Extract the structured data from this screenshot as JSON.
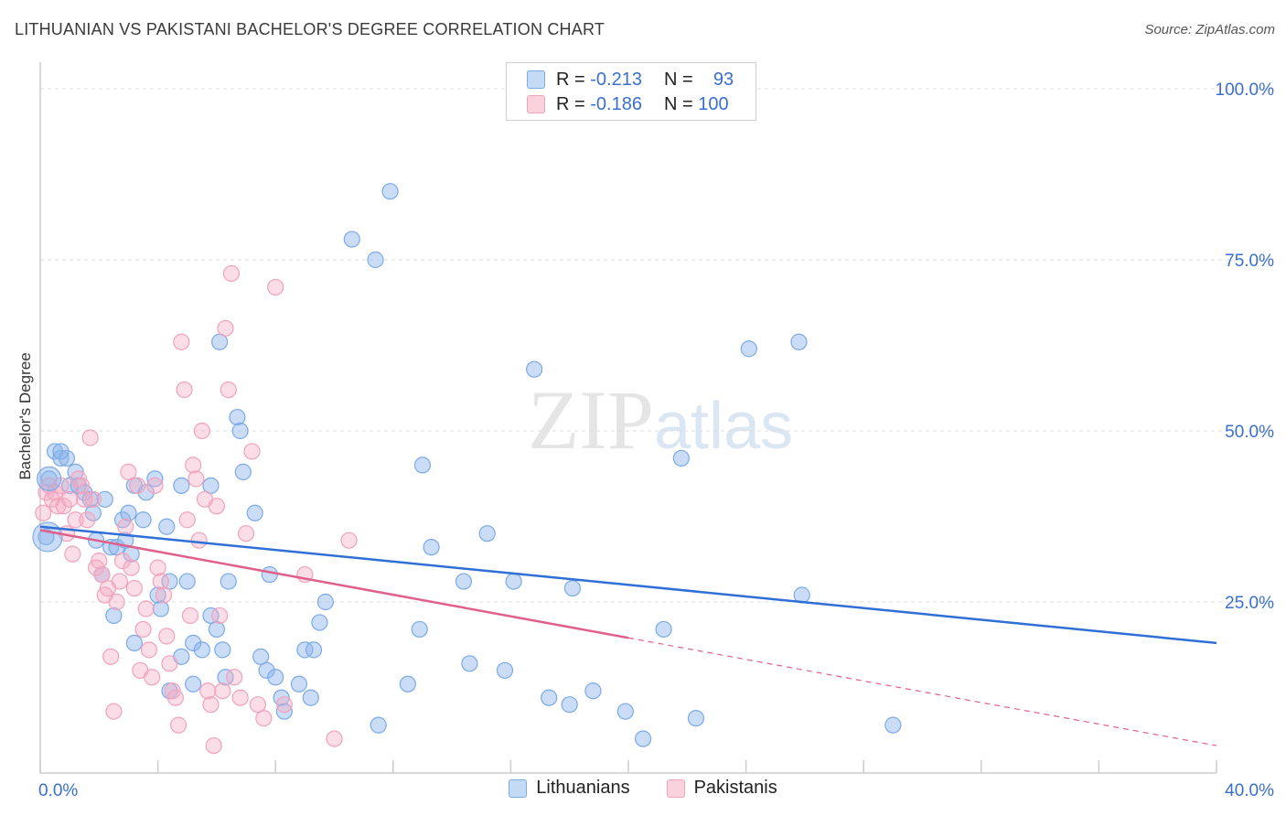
{
  "header": {
    "title": "LITHUANIAN VS PAKISTANI BACHELOR'S DEGREE CORRELATION CHART",
    "source": "Source: ZipAtlas.com"
  },
  "legend": {
    "rows": [
      {
        "r_label": "R = ",
        "r_value": "-0.213",
        "n_label": "N = ",
        "n_value": "93",
        "color": "#7aaae8"
      },
      {
        "r_label": "R = ",
        "r_value": "-0.186",
        "n_label": "N = ",
        "n_value": "100",
        "color": "#f2a2bb"
      }
    ],
    "bottom": [
      "Lithuanians",
      "Pakistanis"
    ]
  },
  "chart_data": {
    "type": "scatter",
    "ylabel": "Bachelor's Degree",
    "xlabel": "",
    "x_tick_labels": {
      "min": "0.0%",
      "max": "40.0%"
    },
    "y_tick_labels": [
      "25.0%",
      "50.0%",
      "75.0%",
      "100.0%"
    ],
    "xlim": [
      0,
      40
    ],
    "ylim": [
      0,
      100
    ],
    "grid": true,
    "watermark": "ZIPatlas",
    "series": [
      {
        "name": "Lithuanians",
        "color": "#7aaae8",
        "line_color": "#2f6fd6",
        "trend": {
          "x0": 0,
          "y0": 36.0,
          "x1": 40,
          "y1": 19.0,
          "solid_until": 40
        },
        "points": [
          [
            0.2,
            34.5
          ],
          [
            0.3,
            43
          ],
          [
            0.5,
            47
          ],
          [
            0.7,
            46
          ],
          [
            0.9,
            46
          ],
          [
            0.7,
            47
          ],
          [
            1.0,
            42
          ],
          [
            1.2,
            44
          ],
          [
            1.3,
            42
          ],
          [
            1.5,
            41
          ],
          [
            1.7,
            40
          ],
          [
            1.8,
            38
          ],
          [
            1.9,
            34
          ],
          [
            2.1,
            29
          ],
          [
            2.2,
            40
          ],
          [
            2.4,
            33
          ],
          [
            2.5,
            23
          ],
          [
            2.6,
            33
          ],
          [
            2.8,
            37
          ],
          [
            2.9,
            34
          ],
          [
            3.0,
            38
          ],
          [
            3.1,
            32
          ],
          [
            3.2,
            42
          ],
          [
            3.2,
            19
          ],
          [
            3.5,
            37
          ],
          [
            3.6,
            41
          ],
          [
            3.9,
            43
          ],
          [
            4.0,
            26
          ],
          [
            4.1,
            24
          ],
          [
            4.3,
            36
          ],
          [
            4.4,
            28
          ],
          [
            4.4,
            12
          ],
          [
            4.8,
            42
          ],
          [
            4.8,
            17
          ],
          [
            5.0,
            28
          ],
          [
            5.2,
            19
          ],
          [
            5.2,
            13
          ],
          [
            5.5,
            18
          ],
          [
            5.8,
            42
          ],
          [
            5.8,
            23
          ],
          [
            6.0,
            21
          ],
          [
            6.1,
            63
          ],
          [
            6.2,
            18
          ],
          [
            6.3,
            14
          ],
          [
            6.4,
            28
          ],
          [
            6.7,
            52
          ],
          [
            6.8,
            50
          ],
          [
            6.9,
            44
          ],
          [
            7.3,
            38
          ],
          [
            7.5,
            17
          ],
          [
            7.7,
            15
          ],
          [
            7.8,
            29
          ],
          [
            8.0,
            14
          ],
          [
            8.2,
            11
          ],
          [
            8.3,
            9
          ],
          [
            8.8,
            13
          ],
          [
            9.0,
            18
          ],
          [
            9.2,
            11
          ],
          [
            9.3,
            18
          ],
          [
            9.5,
            22
          ],
          [
            9.7,
            25
          ],
          [
            10.6,
            78
          ],
          [
            11.4,
            75
          ],
          [
            11.5,
            7
          ],
          [
            11.9,
            85
          ],
          [
            12.5,
            13
          ],
          [
            12.9,
            21
          ],
          [
            13.0,
            45
          ],
          [
            13.3,
            33
          ],
          [
            14.4,
            28
          ],
          [
            14.6,
            16
          ],
          [
            15.2,
            35
          ],
          [
            15.8,
            15
          ],
          [
            16.1,
            28
          ],
          [
            16.8,
            59
          ],
          [
            17.3,
            11
          ],
          [
            18.0,
            10
          ],
          [
            18.1,
            27
          ],
          [
            18.8,
            12
          ],
          [
            19.9,
            9
          ],
          [
            20.5,
            5
          ],
          [
            21.2,
            21
          ],
          [
            21.8,
            46
          ],
          [
            22.3,
            8
          ],
          [
            24.1,
            62
          ],
          [
            25.8,
            63
          ],
          [
            25.9,
            26
          ],
          [
            29.0,
            7
          ]
        ]
      },
      {
        "name": "Pakistanis",
        "color": "#f2a2bb",
        "line_color": "#e0608c",
        "trend": {
          "x0": 0,
          "y0": 35.5,
          "x1": 40,
          "y1": 4.0,
          "solid_until": 20
        },
        "points": [
          [
            0.1,
            38
          ],
          [
            0.2,
            41
          ],
          [
            0.3,
            42
          ],
          [
            0.4,
            40
          ],
          [
            0.5,
            41
          ],
          [
            0.6,
            39
          ],
          [
            0.7,
            42
          ],
          [
            0.8,
            39
          ],
          [
            0.9,
            35
          ],
          [
            1.0,
            40
          ],
          [
            1.1,
            32
          ],
          [
            1.2,
            37
          ],
          [
            1.3,
            43
          ],
          [
            1.4,
            42
          ],
          [
            1.5,
            40
          ],
          [
            1.6,
            37
          ],
          [
            1.7,
            49
          ],
          [
            1.8,
            40
          ],
          [
            1.9,
            30
          ],
          [
            2.0,
            31
          ],
          [
            2.1,
            29
          ],
          [
            2.2,
            26
          ],
          [
            2.3,
            27
          ],
          [
            2.4,
            17
          ],
          [
            2.5,
            9
          ],
          [
            2.6,
            25
          ],
          [
            2.7,
            28
          ],
          [
            2.8,
            31
          ],
          [
            2.9,
            36
          ],
          [
            3.0,
            44
          ],
          [
            3.1,
            30
          ],
          [
            3.2,
            27
          ],
          [
            3.3,
            42
          ],
          [
            3.4,
            15
          ],
          [
            3.5,
            21
          ],
          [
            3.6,
            24
          ],
          [
            3.7,
            18
          ],
          [
            3.8,
            14
          ],
          [
            3.9,
            42
          ],
          [
            4.0,
            30
          ],
          [
            4.1,
            28
          ],
          [
            4.2,
            26
          ],
          [
            4.3,
            20
          ],
          [
            4.4,
            16
          ],
          [
            4.5,
            12
          ],
          [
            4.6,
            11
          ],
          [
            4.7,
            7
          ],
          [
            4.8,
            63
          ],
          [
            4.9,
            56
          ],
          [
            5.0,
            37
          ],
          [
            5.1,
            23
          ],
          [
            5.2,
            45
          ],
          [
            5.3,
            43
          ],
          [
            5.4,
            34
          ],
          [
            5.5,
            50
          ],
          [
            5.6,
            40
          ],
          [
            5.7,
            12
          ],
          [
            5.8,
            10
          ],
          [
            5.9,
            4
          ],
          [
            6.0,
            39
          ],
          [
            6.1,
            23
          ],
          [
            6.2,
            12
          ],
          [
            6.3,
            65
          ],
          [
            6.4,
            56
          ],
          [
            6.5,
            73
          ],
          [
            6.6,
            14
          ],
          [
            6.8,
            11
          ],
          [
            7.0,
            35
          ],
          [
            7.2,
            47
          ],
          [
            7.4,
            10
          ],
          [
            7.6,
            8
          ],
          [
            8.0,
            71
          ],
          [
            8.3,
            10
          ],
          [
            9.0,
            29
          ],
          [
            10.0,
            5
          ],
          [
            10.5,
            34
          ]
        ]
      }
    ]
  }
}
